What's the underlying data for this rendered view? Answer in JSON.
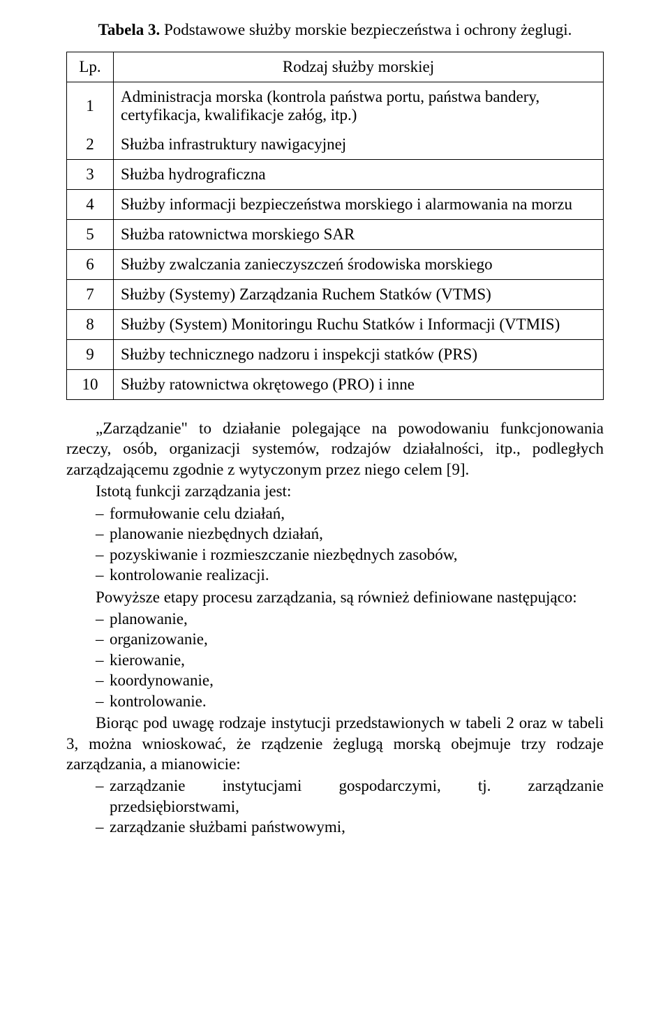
{
  "caption": {
    "prefix_bold": "Tabela 3.",
    "rest": " Podstawowe służby morskie bezpieczeństwa i ochrony żeglugi."
  },
  "table": {
    "header": {
      "lp": "Lp.",
      "desc": "Rodzaj służby morskiej"
    },
    "rows": [
      {
        "n": "1",
        "t": "Administracja morska (kontrola państwa portu, państwa bandery, certyfikacja, kwalifikacje załóg, itp.)"
      },
      {
        "n": "2",
        "t": "Służba infrastruktury nawigacyjnej"
      },
      {
        "n": "3",
        "t": "Służba hydrograficzna"
      },
      {
        "n": "4",
        "t": "Służby informacji bezpieczeństwa morskiego i alarmowania na morzu"
      },
      {
        "n": "5",
        "t": "Służba ratownictwa morskiego SAR"
      },
      {
        "n": "6",
        "t": "Służby zwalczania zanieczyszczeń środowiska morskiego"
      },
      {
        "n": "7",
        "t": "Służby (Systemy) Zarządzania Ruchem Statków (VTMS)"
      },
      {
        "n": "8",
        "t": "Służby (System) Monitoringu Ruchu Statków i Informacji (VTMIS)"
      },
      {
        "n": "9",
        "t": "Służby technicznego nadzoru i inspekcji statków (PRS)"
      },
      {
        "n": "10",
        "t": "Służby ratownictwa okrętowego (PRO) i inne"
      }
    ]
  },
  "para1": "„Zarządzanie\" to działanie polegające na powodowaniu funkcjonowania rzeczy, osób, organizacji systemów, rodzajów działalności, itp., podległych zarządzającemu zgodnie z wytyczonym przez niego celem [9].",
  "para2": "Istotą funkcji zarządzania jest:",
  "list1": [
    "formułowanie celu działań,",
    "planowanie niezbędnych działań,",
    "pozyskiwanie i rozmieszczanie niezbędnych zasobów,",
    "kontrolowanie realizacji."
  ],
  "para3": "Powyższe etapy procesu zarządzania, są również definiowane następująco:",
  "list2": [
    "planowanie,",
    "organizowanie,",
    "kierowanie,",
    "koordynowanie,",
    "kontrolowanie."
  ],
  "para4": "Biorąc pod uwagę rodzaje instytucji przedstawionych w tabeli 2 oraz w tabeli 3, można wnioskować, że rządzenie żeglugą morską obejmuje trzy rodzaje zarządzania, a mianowicie:",
  "list3": [
    "zarządzanie instytucjami gospodarczymi, tj. zarządzanie przedsiębiorstwami,",
    "zarządzanie służbami państwowymi,"
  ]
}
